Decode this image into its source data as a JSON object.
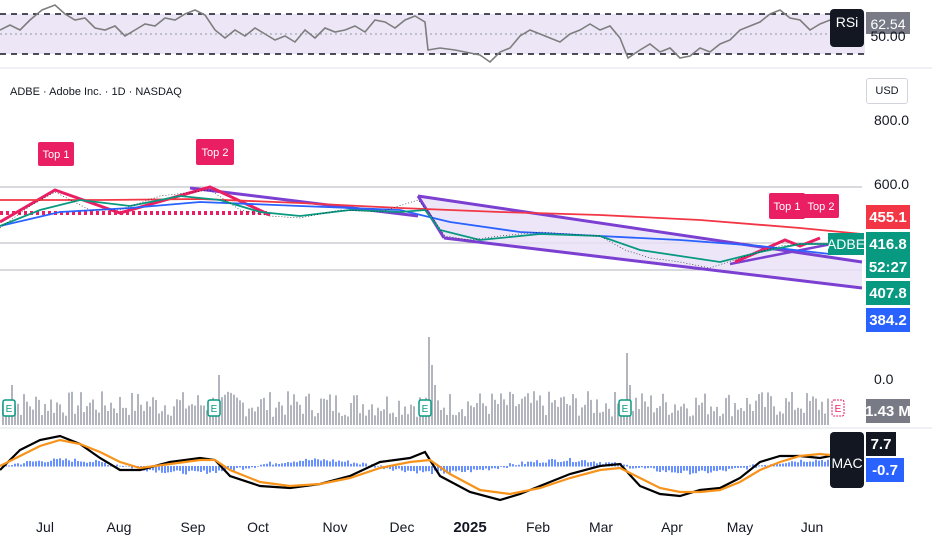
{
  "header": {
    "symbol_line": "ADBE · Adobe Inc. · 1D · NASDAQ",
    "currency": "USD"
  },
  "rsi": {
    "label": "RSi",
    "value": "62.54",
    "level_partial": "50.00"
  },
  "price_axis": {
    "ticks": [
      "800.0",
      "600.0"
    ]
  },
  "price_badges": [
    {
      "name": "price-badge-455",
      "text": "455.1",
      "color": "#f23645",
      "text_color": "#ffffff"
    },
    {
      "name": "price-badge-416",
      "text": "416.8",
      "color": "#089981",
      "text_color": "#ffffff"
    },
    {
      "name": "price-badge-countdown",
      "text": "52:27",
      "color": "#089981",
      "text_color": "#ffffff"
    },
    {
      "name": "price-badge-407",
      "text": "407.8",
      "color": "#089981",
      "text_color": "#ffffff"
    },
    {
      "name": "price-badge-384",
      "text": "384.2",
      "color": "#2962ff",
      "text_color": "#ffffff"
    }
  ],
  "symbol_tag": "ADBE",
  "annotations": [
    {
      "name": "top1-label-left",
      "text": "Top 1"
    },
    {
      "name": "top2-label-left",
      "text": "Top 2"
    },
    {
      "name": "top1-label-right",
      "text": "Top 1"
    },
    {
      "name": "top2-label-right",
      "text": "Top 2"
    }
  ],
  "volume": {
    "zero_label": "0.0",
    "value": "1.43 M",
    "earnings_marker": "E"
  },
  "macd": {
    "label": "MAC",
    "value1": "7.7",
    "value2": "-0.7"
  },
  "time_axis": {
    "labels": [
      "Jul",
      "Aug",
      "Sep",
      "Oct",
      "Nov",
      "Dec",
      "2025",
      "Feb",
      "Mar",
      "Apr",
      "May",
      "Jun"
    ]
  },
  "colors": {
    "up": "#089981",
    "down": "#f23645",
    "channel": "#7b3fd1",
    "ma_blue": "#2962ff",
    "ma_red": "#e91e63",
    "macd_orange": "#f7931a"
  }
}
